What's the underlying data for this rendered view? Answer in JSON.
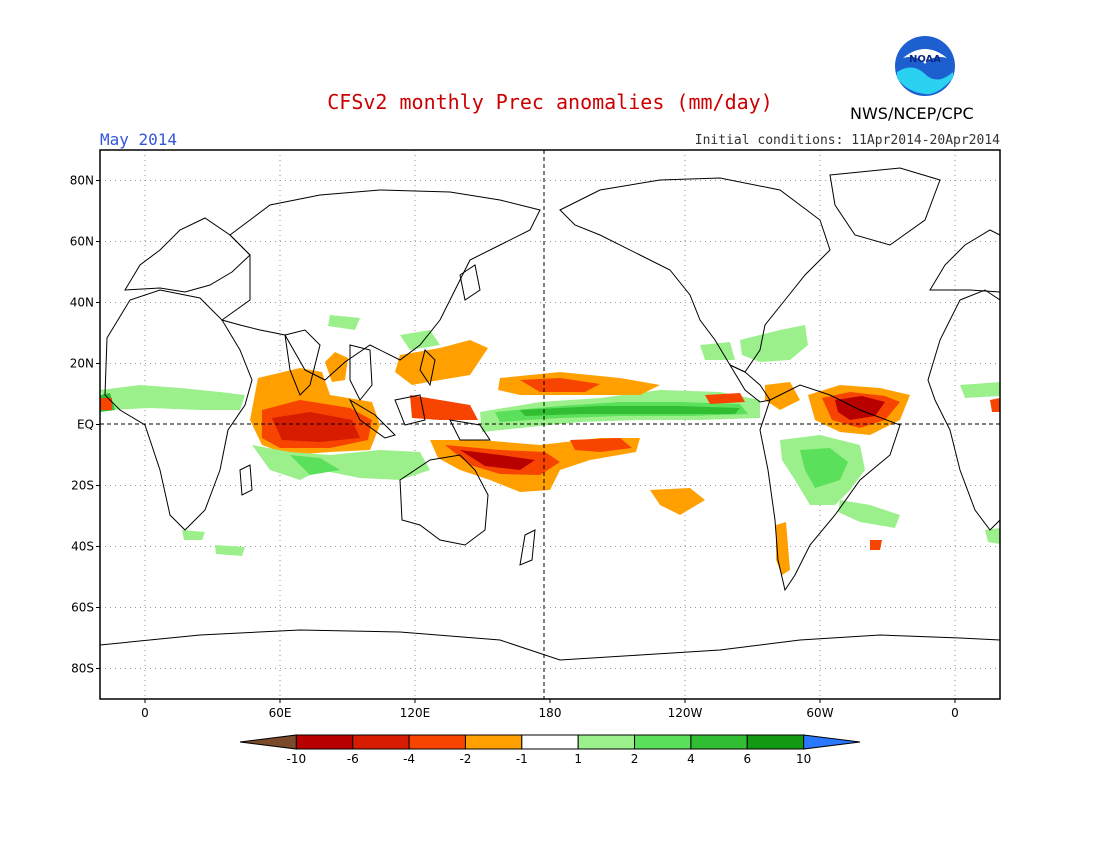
{
  "header": {
    "title": "CFSv2 monthly Prec anomalies (mm/day)",
    "period": "May 2014",
    "initial_conditions": "Initial conditions: 11Apr2014-20Apr2014",
    "organization": "NWS/NCEP/CPC",
    "logo_text": "NOAA"
  },
  "colors": {
    "title": "#cc0000",
    "period": "#3355dd",
    "frame": "#000000"
  },
  "map": {
    "projection": "cylindrical equidistant",
    "lon_range": [
      -20,
      380
    ],
    "lat_range": [
      -90,
      90
    ],
    "lat_labels": [
      "80N",
      "60N",
      "40N",
      "20N",
      "EQ",
      "20S",
      "40S",
      "60S",
      "80S"
    ],
    "lon_labels": [
      "0",
      "60E",
      "120E",
      "180",
      "120W",
      "60W",
      "0"
    ],
    "reference_lines": [
      "EQ",
      "180"
    ]
  },
  "legend": {
    "units": "mm/day",
    "ticks": [
      "-10",
      "-6",
      "-4",
      "-2",
      "-1",
      "1",
      "2",
      "4",
      "6",
      "10"
    ],
    "bins": [
      {
        "label": "<-10",
        "color": "#7a4a2a"
      },
      {
        "label": "-10 to -6",
        "color": "#b80000"
      },
      {
        "label": "-6 to -4",
        "color": "#d81c00"
      },
      {
        "label": "-4 to -2",
        "color": "#f74400"
      },
      {
        "label": "-2 to -1",
        "color": "#ffa000"
      },
      {
        "label": "-1 to 1",
        "color": "#ffffff"
      },
      {
        "label": "1 to 2",
        "color": "#9cf08c"
      },
      {
        "label": "2 to 4",
        "color": "#5ae05a"
      },
      {
        "label": "4 to 6",
        "color": "#32be32"
      },
      {
        "label": "6 to 10",
        "color": "#129a12"
      },
      {
        "label": ">10",
        "color": "#2a78ff"
      }
    ]
  }
}
